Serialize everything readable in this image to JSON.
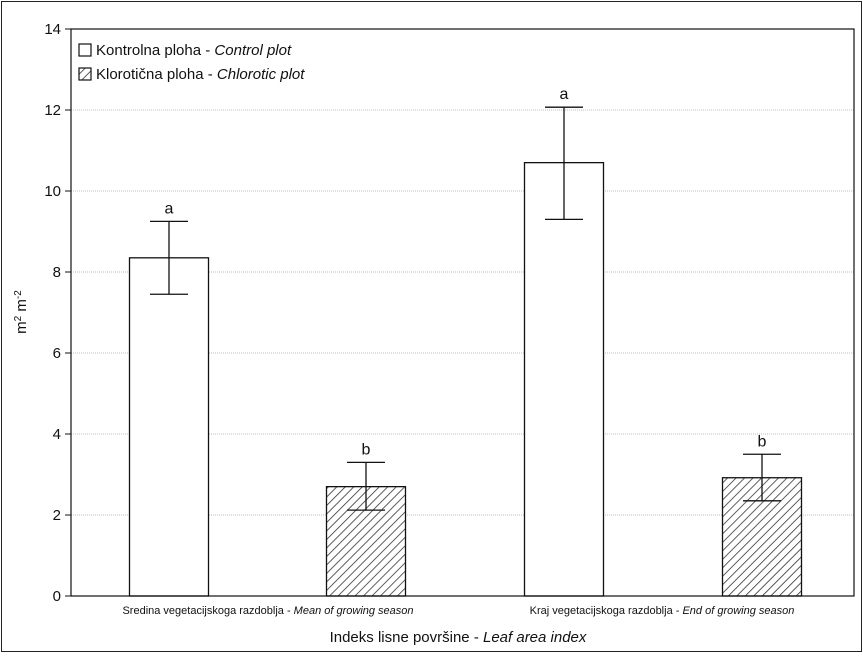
{
  "chart_data": {
    "type": "bar",
    "title": "",
    "xlabel": {
      "plain": "Indeks lisne površine - ",
      "italic": "Leaf area index"
    },
    "ylabel": {
      "base1": "m",
      "sup1": "2",
      "base2": " m",
      "sup2": "-2"
    },
    "ylim": [
      0,
      14
    ],
    "yticks": [
      0,
      2,
      4,
      6,
      8,
      10,
      12,
      14
    ],
    "grid": true,
    "legend_position": "top-left",
    "categories": [
      {
        "plain": "Sredina vegetacijskoga razdoblja - ",
        "italic": "Mean of growing season"
      },
      {
        "plain": "Kraj vegetacijskoga razdoblja - ",
        "italic": "End of growing season"
      }
    ],
    "series": [
      {
        "name": "Kontrolna ploha - Control plot",
        "name_plain": "Kontrolna ploha - ",
        "name_italic": "Control plot",
        "fill": "#ffffff",
        "pattern": "none",
        "values": [
          8.35,
          10.7
        ],
        "error_low": [
          7.45,
          9.3
        ],
        "error_high": [
          9.25,
          12.07
        ],
        "labels": [
          "a",
          "a"
        ]
      },
      {
        "name": "Klorotična ploha - Chlorotic plot",
        "name_plain": "Klorotična ploha - ",
        "name_italic": "Chlorotic plot",
        "fill": "#ffffff",
        "pattern": "diagonal-hatch",
        "values": [
          2.7,
          2.92
        ],
        "error_low": [
          2.12,
          2.35
        ],
        "error_high": [
          3.3,
          3.5
        ],
        "labels": [
          "b",
          "b"
        ]
      }
    ],
    "colors": {
      "grid": "#bdbdbd",
      "axis": "#111111",
      "bar_stroke": "#111111",
      "hatch": "#333333"
    }
  }
}
